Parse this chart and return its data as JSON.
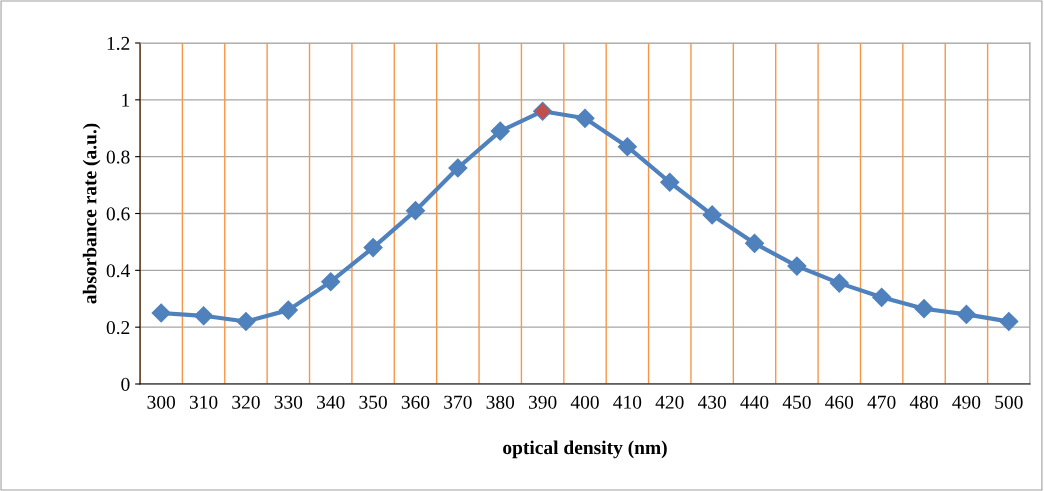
{
  "chart_data": {
    "type": "line",
    "xlabel": "optical density (nm)",
    "ylabel": "absorbance rate (a.u.)",
    "categories": [
      "300",
      "310",
      "320",
      "330",
      "340",
      "350",
      "360",
      "370",
      "380",
      "390",
      "400",
      "410",
      "420",
      "430",
      "440",
      "450",
      "460",
      "470",
      "480",
      "490",
      "500"
    ],
    "series": [
      {
        "color": "#4f81bd",
        "values": [
          0.25,
          0.24,
          0.22,
          0.26,
          0.36,
          0.48,
          0.61,
          0.76,
          0.89,
          0.96,
          0.935,
          0.835,
          0.71,
          0.595,
          0.495,
          0.415,
          0.355,
          0.305,
          0.265,
          0.245,
          0.22
        ],
        "colors": [
          "#4f81bd",
          "#4f81bd",
          "#4f81bd",
          "#4f81bd",
          "#4f81bd",
          "#4f81bd",
          "#4f81bd",
          "#4f81bd",
          "#4f81bd",
          "#c0504d",
          "#4f81bd",
          "#4f81bd",
          "#4f81bd",
          "#4f81bd",
          "#4f81bd",
          "#4f81bd",
          "#4f81bd",
          "#4f81bd",
          "#4f81bd",
          "#4f81bd",
          "#4f81bd"
        ]
      }
    ],
    "ylim": [
      0,
      1.2
    ],
    "yticks": [
      0,
      0.2,
      0.4,
      0.6,
      0.8,
      1,
      1.2
    ],
    "grid": true,
    "marker": "diamond",
    "line_style": "solid",
    "legend": false
  }
}
